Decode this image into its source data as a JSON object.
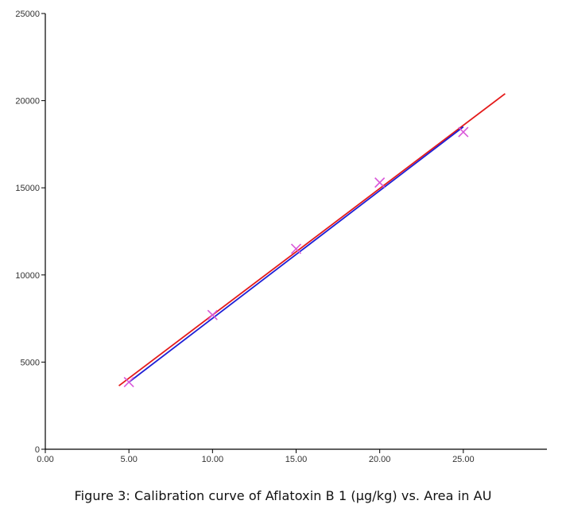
{
  "caption": "Figure 3:  Calibration curve of Aflatoxin B 1 (µg/kg) vs. Area in AU",
  "colors": {
    "fit_line": "#1f1fd6",
    "extrapolation": "#e41a1a",
    "markers": "#d958d9",
    "axis": "#000000"
  },
  "chart_data": {
    "type": "scatter",
    "title": "",
    "xlabel": "",
    "ylabel": "",
    "xlim": [
      0,
      30
    ],
    "ylim": [
      0,
      25000
    ],
    "x_tick_labels": [
      "0.00",
      "5.00",
      "10.00",
      "15.00",
      "20.00",
      "25.00"
    ],
    "x_tick_values": [
      0,
      5,
      10,
      15,
      20,
      25
    ],
    "y_tick_labels": [
      "0",
      "5000",
      "10000",
      "15000",
      "20000",
      "25000"
    ],
    "y_tick_values": [
      0,
      5000,
      10000,
      15000,
      20000,
      25000
    ],
    "grid": false,
    "legend": "none",
    "series": [
      {
        "marker": "x",
        "x": [
          5,
          10,
          15,
          20,
          25
        ],
        "y": [
          3850,
          7700,
          11500,
          15300,
          18200
        ]
      }
    ],
    "fit_line": {
      "x_range": [
        5,
        25
      ],
      "y_range": [
        3850,
        18500
      ]
    },
    "extrapolation": {
      "x_range": [
        4.4,
        27.5
      ],
      "y_range": [
        3640,
        20400
      ]
    }
  }
}
